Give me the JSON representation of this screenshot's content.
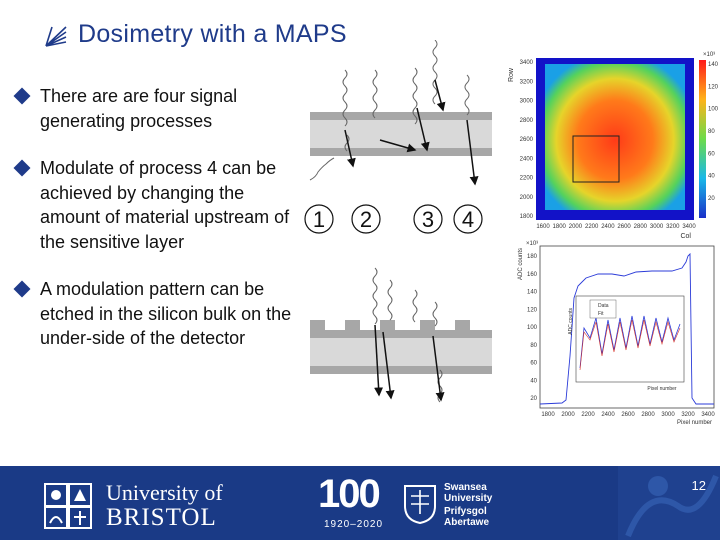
{
  "slide": {
    "title": "Dosimetry with a MAPS",
    "bullets": [
      "There are are four signal generating processes",
      "Modulate of process 4 can be achieved by changing the amount of material upstream of the sensitive layer",
      "A modulation pattern can be etched in the silicon bulk on the under-side of the detector"
    ],
    "page_number": "12"
  },
  "diagram": {
    "process_labels": [
      "1",
      "2",
      "3",
      "4"
    ]
  },
  "heatmap": {
    "y_title": "Row",
    "x_title": "Col",
    "y_ticks": [
      "3400",
      "3200",
      "3000",
      "2800",
      "2600",
      "2400",
      "2200",
      "2000",
      "1800"
    ],
    "x_ticks": [
      "1600",
      "1800",
      "2000",
      "2200",
      "2400",
      "2600",
      "2800",
      "3000",
      "3200",
      "3400"
    ],
    "colorbar_exponent": "×10³",
    "colorbar_ticks": [
      "140",
      "120",
      "100",
      "80",
      "60",
      "40",
      "20"
    ]
  },
  "spectrum": {
    "y_title": "ADC counts",
    "y_exponent": "×10³",
    "y_ticks": [
      "180",
      "160",
      "140",
      "120",
      "100",
      "80",
      "60",
      "40",
      "20"
    ],
    "x_ticks": [
      "1800",
      "2000",
      "2200",
      "2400",
      "2600",
      "2800",
      "3000",
      "3200",
      "3400"
    ],
    "x_title": "Pixel number",
    "inset_legend": [
      "Data",
      "Fit"
    ],
    "inset_xlabel": "Pixel number",
    "inset_ylabel": "ADC counts"
  },
  "footer": {
    "bristol_line1": "University of",
    "bristol_line2": "BRISTOL",
    "centenary_number": "100",
    "centenary_years": "1920–2020",
    "swansea_line1": "Swansea",
    "swansea_line2": "University",
    "swansea_line3": "Prifysgol",
    "swansea_line4": "Abertawe"
  },
  "colors": {
    "title_blue": "#1f3b8a",
    "footer_blue": "#1a3a86",
    "wafer_grey": "#a7a7a7",
    "heatmap_background": "#1212c8"
  }
}
